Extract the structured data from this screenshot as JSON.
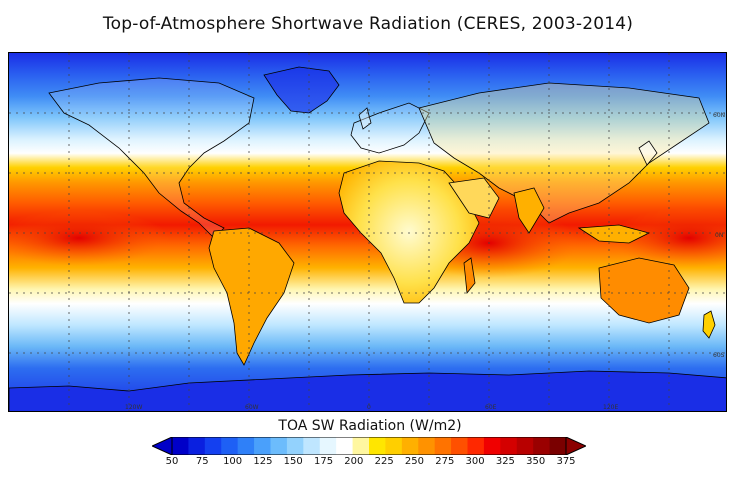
{
  "title": "Top-of-Atmosphere Shortwave Radiation (CERES, 2003-2014)",
  "map": {
    "lon_labels": [
      "120W",
      "60W",
      "0",
      "60E",
      "120E"
    ],
    "lat_labels": [
      "60N",
      "0N",
      "60S"
    ],
    "colors": {
      "low": "#1a2ee6",
      "mid": "#ffffff",
      "high": "#8b0000"
    }
  },
  "colorbar": {
    "title": "TOA SW Radiation (W/m2)",
    "ticks": [
      "50",
      "75",
      "100",
      "125",
      "150",
      "175",
      "200",
      "225",
      "250",
      "275",
      "300",
      "325",
      "350",
      "375"
    ],
    "colors": [
      "#0000c8",
      "#0a20e0",
      "#1440f0",
      "#1e60f5",
      "#2f80f8",
      "#4aa0fb",
      "#6cbcfc",
      "#93d2fd",
      "#bfe6ff",
      "#e6f7ff",
      "#ffffff",
      "#fff7a0",
      "#ffe600",
      "#ffcf00",
      "#ffb000",
      "#ff9200",
      "#ff7300",
      "#ff5000",
      "#ff2800",
      "#f00000",
      "#d40000",
      "#b80000",
      "#9a0000",
      "#7a0000"
    ],
    "min_color": "#0000c8",
    "max_color": "#8b0000"
  }
}
